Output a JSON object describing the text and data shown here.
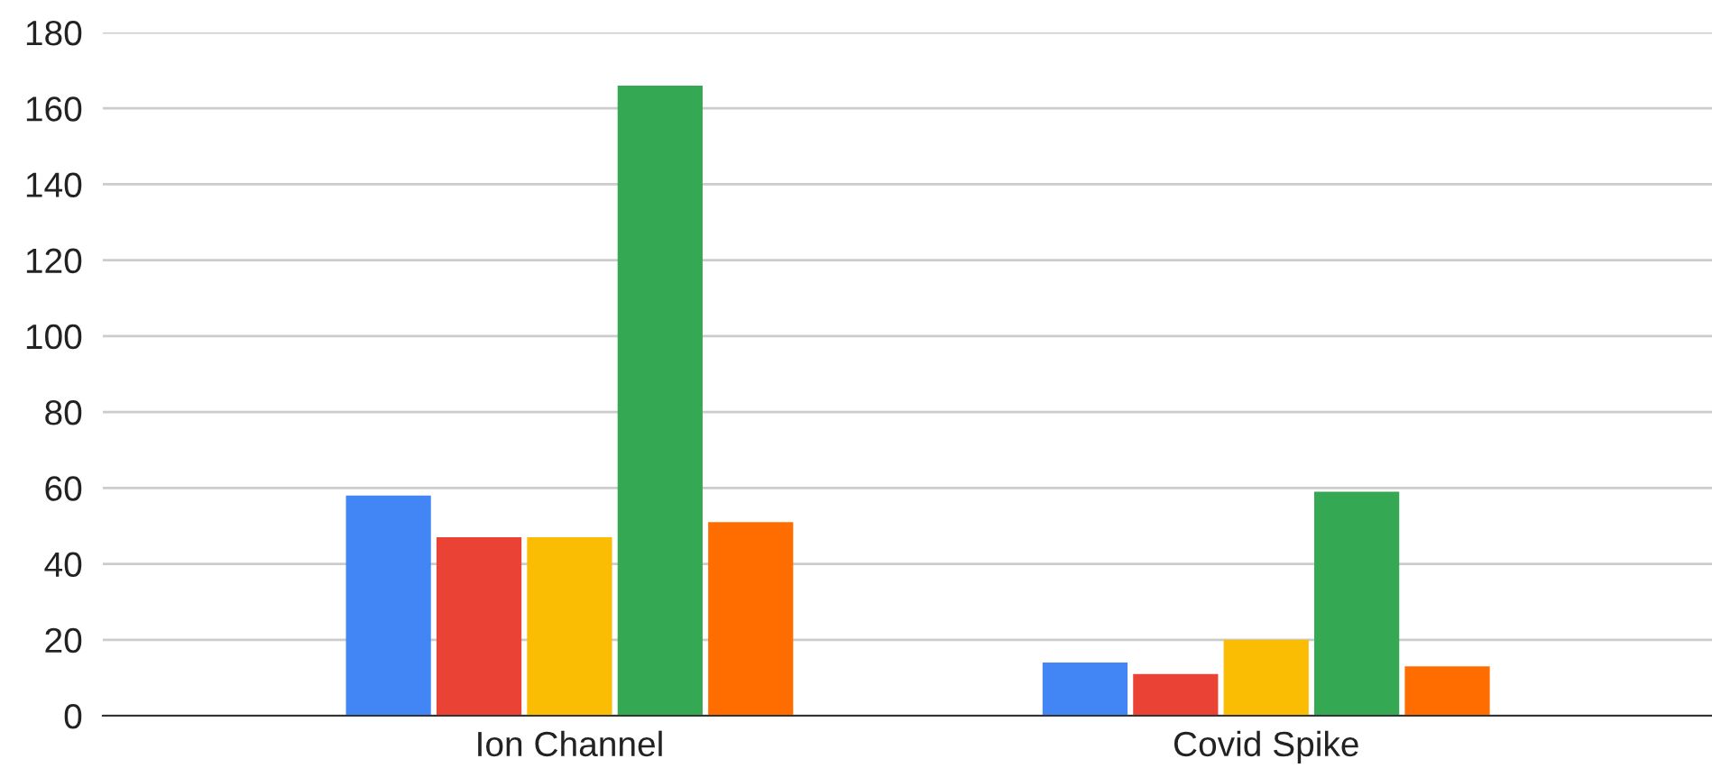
{
  "chart_data": {
    "type": "bar",
    "categories": [
      "Ion Channel",
      "Covid Spike"
    ],
    "series": [
      {
        "color": "#4285f4",
        "values": [
          58,
          14
        ]
      },
      {
        "color": "#ea4335",
        "values": [
          47,
          11
        ]
      },
      {
        "color": "#fbbc04",
        "values": [
          47,
          20
        ]
      },
      {
        "color": "#34a853",
        "values": [
          166,
          59
        ]
      },
      {
        "color": "#ff6d01",
        "values": [
          51,
          13
        ]
      }
    ],
    "ylim": [
      0,
      180
    ],
    "yticks": [
      0,
      20,
      40,
      60,
      80,
      100,
      120,
      140,
      160,
      180
    ],
    "grid": "y"
  }
}
